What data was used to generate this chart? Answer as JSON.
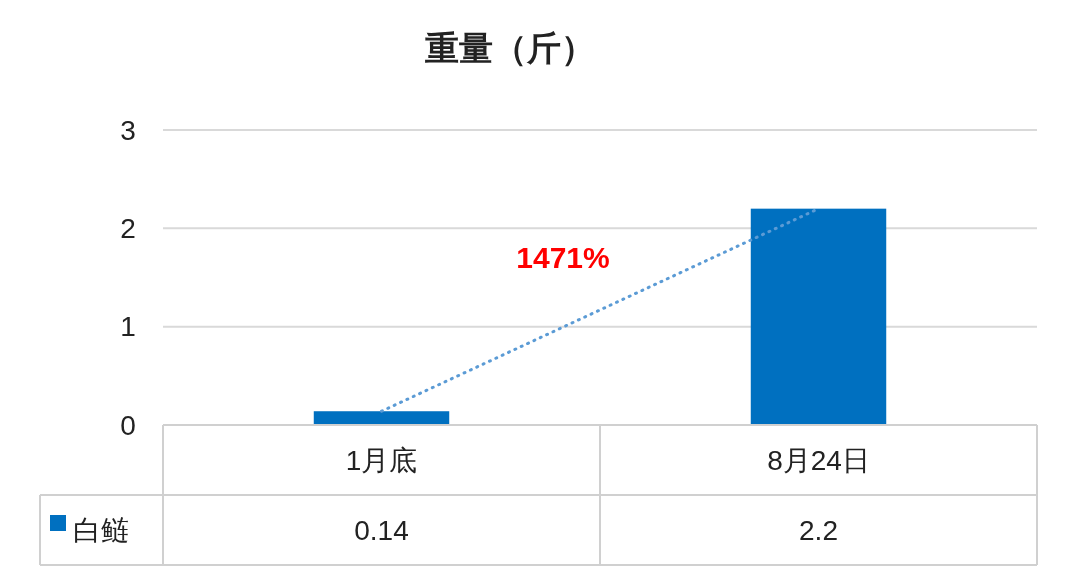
{
  "chart_data": {
    "type": "bar",
    "title": "重量（斤）",
    "categories": [
      "1月底",
      "8月24日"
    ],
    "ylim": [
      0,
      3
    ],
    "yticks": [
      0,
      1,
      2,
      3
    ],
    "grid": "y",
    "legend": "bottom left",
    "series": [
      {
        "name": "白鲢",
        "color": "#0070c0",
        "values": [
          0.14,
          2.2
        ],
        "value_labels": [
          "0.14",
          "2.2"
        ]
      },
      {
        "type": "line",
        "color": "#5b9bd5",
        "line_style": "dotted",
        "values": [
          0.14,
          2.2
        ]
      }
    ],
    "annotations": [
      "1471%"
    ]
  }
}
